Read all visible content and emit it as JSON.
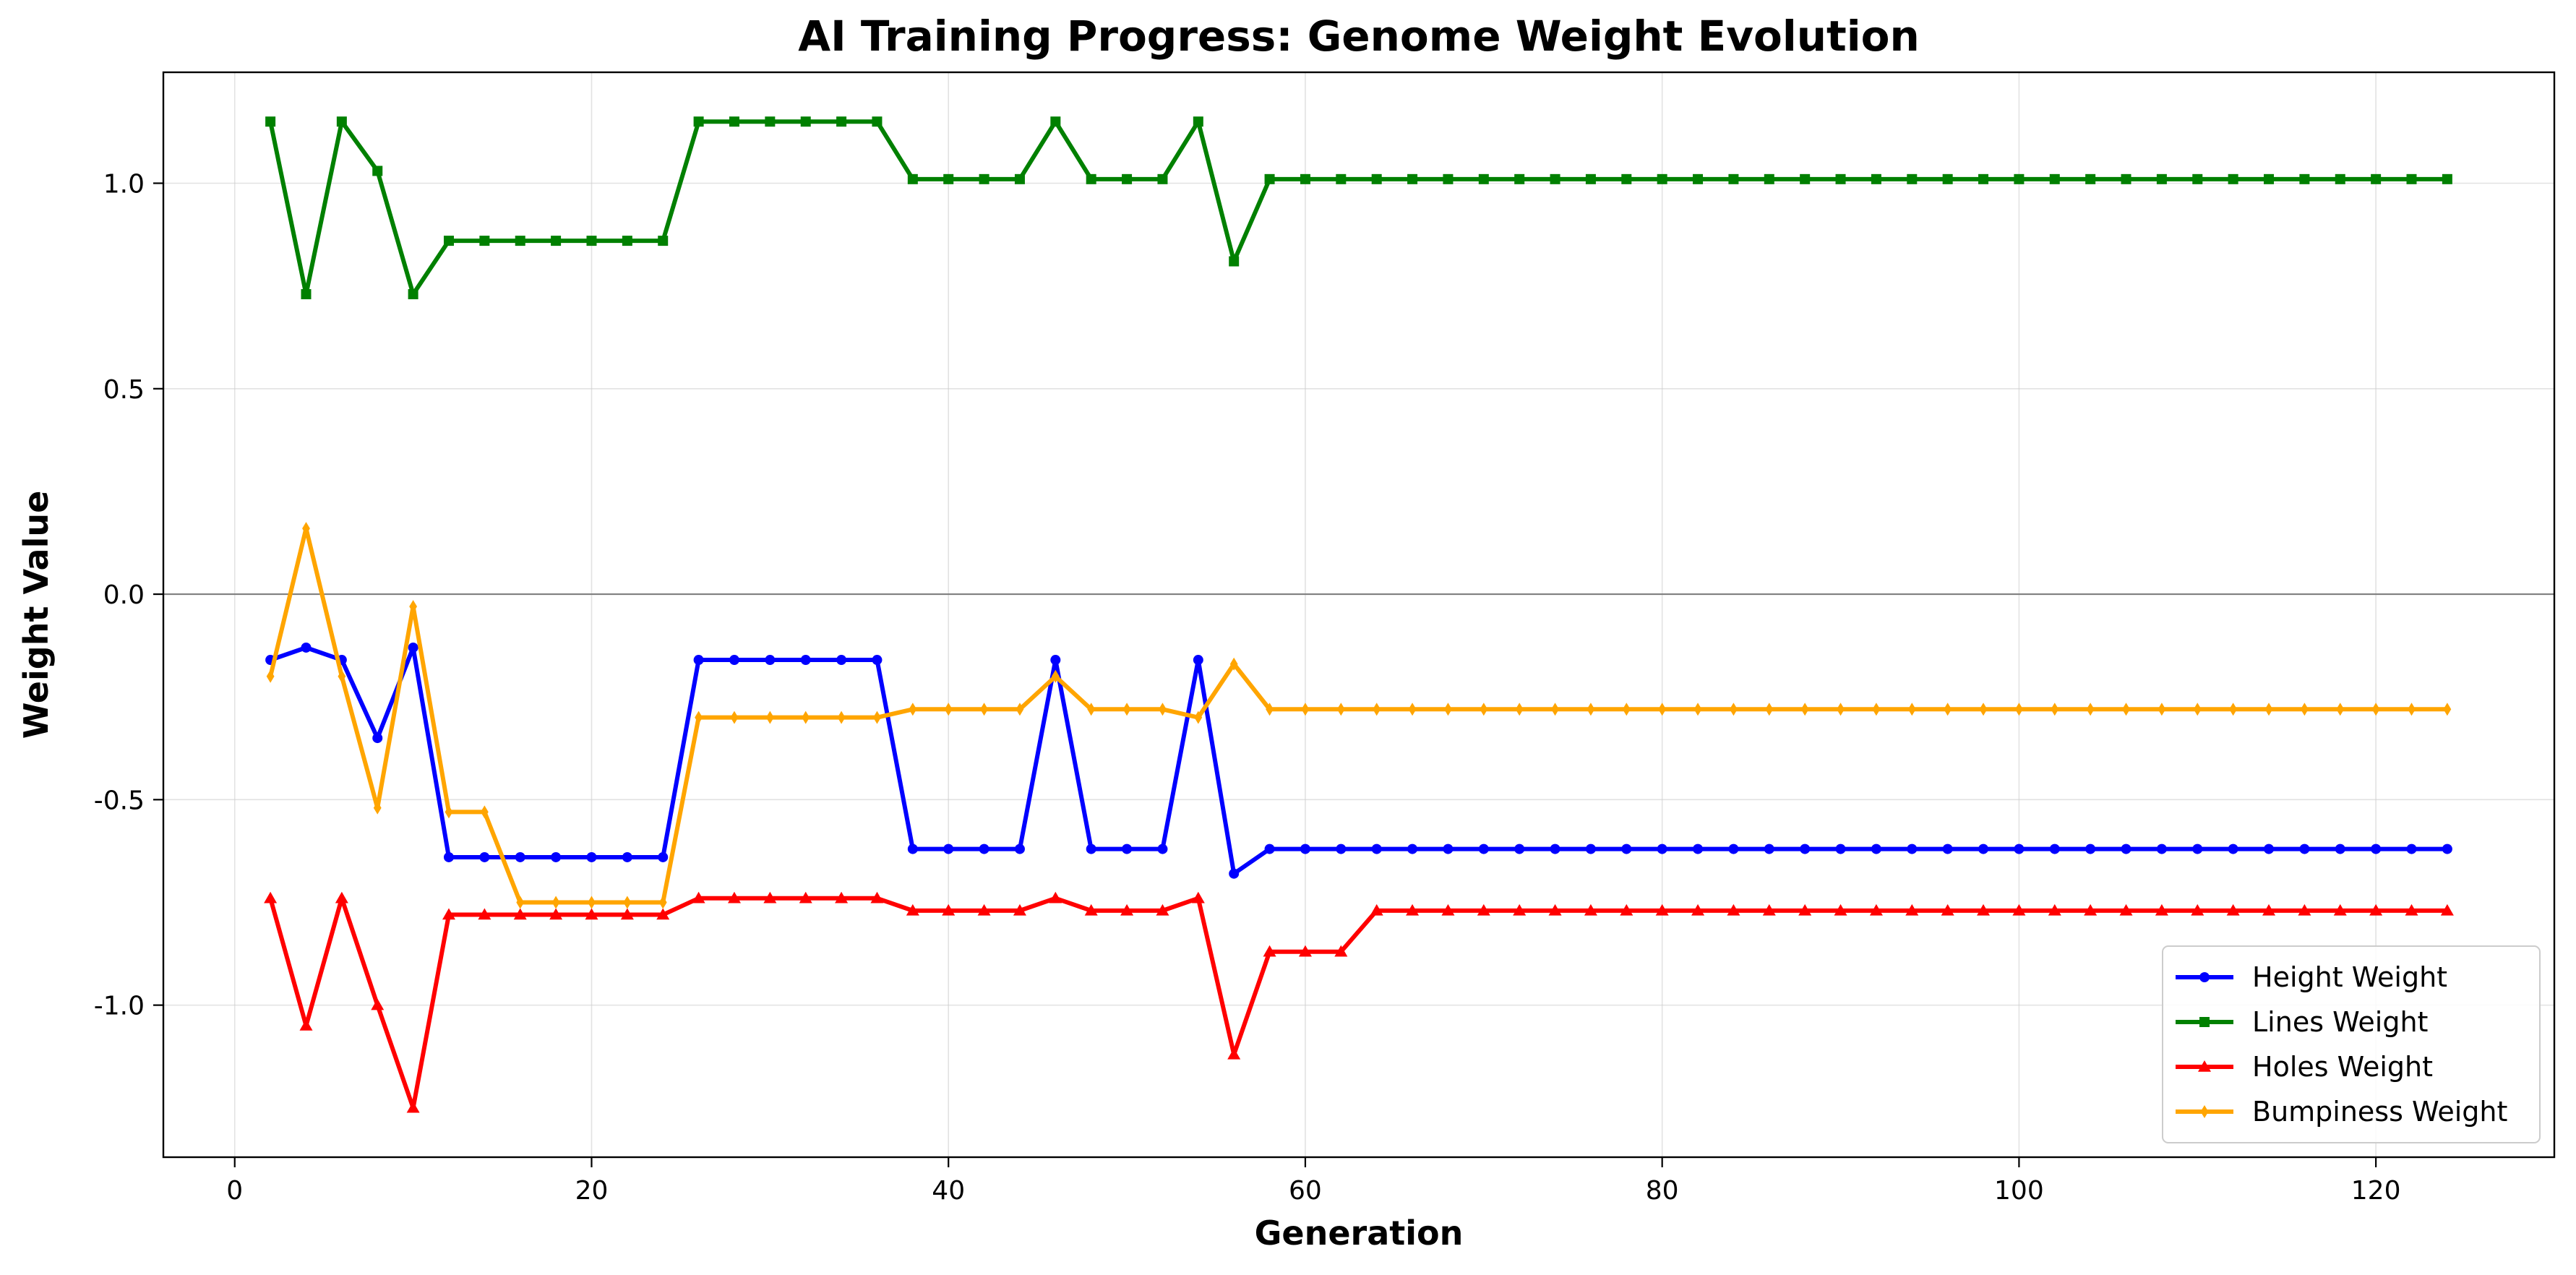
{
  "chart_data": {
    "type": "line",
    "title": "AI Training Progress: Genome Weight Evolution",
    "xlabel": "Generation",
    "ylabel": "Weight Value",
    "xlim": [
      -4,
      130
    ],
    "ylim": [
      -1.37,
      1.27
    ],
    "xticks": [
      0,
      20,
      40,
      60,
      80,
      100,
      120
    ],
    "yticks": [
      -1.0,
      -0.5,
      0.0,
      0.5,
      1.0
    ],
    "grid": true,
    "zero_line": true,
    "legend_position": "lower-right",
    "x": [
      2,
      4,
      6,
      8,
      10,
      12,
      14,
      16,
      18,
      20,
      22,
      24,
      26,
      28,
      30,
      32,
      34,
      36,
      38,
      40,
      42,
      44,
      46,
      48,
      50,
      52,
      54,
      56,
      58,
      60,
      62,
      64,
      66,
      68,
      70,
      72,
      74,
      76,
      78,
      80,
      82,
      84,
      86,
      88,
      90,
      92,
      94,
      96,
      98,
      100,
      102,
      104,
      106,
      108,
      110,
      112,
      114,
      116,
      118,
      120,
      122,
      124
    ],
    "series": [
      {
        "name": "Height Weight",
        "color": "#0000ff",
        "marker": "circle",
        "values": [
          -0.16,
          -0.13,
          -0.16,
          -0.35,
          -0.13,
          -0.64,
          -0.64,
          -0.64,
          -0.64,
          -0.64,
          -0.64,
          -0.64,
          -0.16,
          -0.16,
          -0.16,
          -0.16,
          -0.16,
          -0.16,
          -0.62,
          -0.62,
          -0.62,
          -0.62,
          -0.16,
          -0.62,
          -0.62,
          -0.62,
          -0.16,
          -0.68,
          -0.62,
          -0.62,
          -0.62,
          -0.62,
          -0.62,
          -0.62,
          -0.62,
          -0.62,
          -0.62,
          -0.62,
          -0.62,
          -0.62,
          -0.62,
          -0.62,
          -0.62,
          -0.62,
          -0.62,
          -0.62,
          -0.62,
          -0.62,
          -0.62,
          -0.62,
          -0.62,
          -0.62,
          -0.62,
          -0.62,
          -0.62,
          -0.62,
          -0.62,
          -0.62,
          -0.62,
          -0.62,
          -0.62,
          -0.62
        ]
      },
      {
        "name": "Lines Weight",
        "color": "#008000",
        "marker": "square",
        "values": [
          1.15,
          0.73,
          1.15,
          1.03,
          0.73,
          0.86,
          0.86,
          0.86,
          0.86,
          0.86,
          0.86,
          0.86,
          1.15,
          1.15,
          1.15,
          1.15,
          1.15,
          1.15,
          1.01,
          1.01,
          1.01,
          1.01,
          1.15,
          1.01,
          1.01,
          1.01,
          1.15,
          0.81,
          1.01,
          1.01,
          1.01,
          1.01,
          1.01,
          1.01,
          1.01,
          1.01,
          1.01,
          1.01,
          1.01,
          1.01,
          1.01,
          1.01,
          1.01,
          1.01,
          1.01,
          1.01,
          1.01,
          1.01,
          1.01,
          1.01,
          1.01,
          1.01,
          1.01,
          1.01,
          1.01,
          1.01,
          1.01,
          1.01,
          1.01,
          1.01,
          1.01,
          1.01
        ]
      },
      {
        "name": "Holes Weight",
        "color": "#ff0000",
        "marker": "triangle",
        "values": [
          -0.74,
          -1.05,
          -0.74,
          -1.0,
          -1.25,
          -0.78,
          -0.78,
          -0.78,
          -0.78,
          -0.78,
          -0.78,
          -0.78,
          -0.74,
          -0.74,
          -0.74,
          -0.74,
          -0.74,
          -0.74,
          -0.77,
          -0.77,
          -0.77,
          -0.77,
          -0.74,
          -0.77,
          -0.77,
          -0.77,
          -0.74,
          -1.12,
          -0.87,
          -0.87,
          -0.87,
          -0.77,
          -0.77,
          -0.77,
          -0.77,
          -0.77,
          -0.77,
          -0.77,
          -0.77,
          -0.77,
          -0.77,
          -0.77,
          -0.77,
          -0.77,
          -0.77,
          -0.77,
          -0.77,
          -0.77,
          -0.77,
          -0.77,
          -0.77,
          -0.77,
          -0.77,
          -0.77,
          -0.77,
          -0.77,
          -0.77,
          -0.77,
          -0.77,
          -0.77,
          -0.77,
          -0.77
        ]
      },
      {
        "name": "Bumpiness Weight",
        "color": "#ffa500",
        "marker": "diamond",
        "values": [
          -0.2,
          0.16,
          -0.2,
          -0.52,
          -0.03,
          -0.53,
          -0.53,
          -0.75,
          -0.75,
          -0.75,
          -0.75,
          -0.75,
          -0.3,
          -0.3,
          -0.3,
          -0.3,
          -0.3,
          -0.3,
          -0.28,
          -0.28,
          -0.28,
          -0.28,
          -0.2,
          -0.28,
          -0.28,
          -0.28,
          -0.3,
          -0.17,
          -0.28,
          -0.28,
          -0.28,
          -0.28,
          -0.28,
          -0.28,
          -0.28,
          -0.28,
          -0.28,
          -0.28,
          -0.28,
          -0.28,
          -0.28,
          -0.28,
          -0.28,
          -0.28,
          -0.28,
          -0.28,
          -0.28,
          -0.28,
          -0.28,
          -0.28,
          -0.28,
          -0.28,
          -0.28,
          -0.28,
          -0.28,
          -0.28,
          -0.28,
          -0.28,
          -0.28,
          -0.28,
          -0.28,
          -0.28
        ]
      }
    ]
  }
}
